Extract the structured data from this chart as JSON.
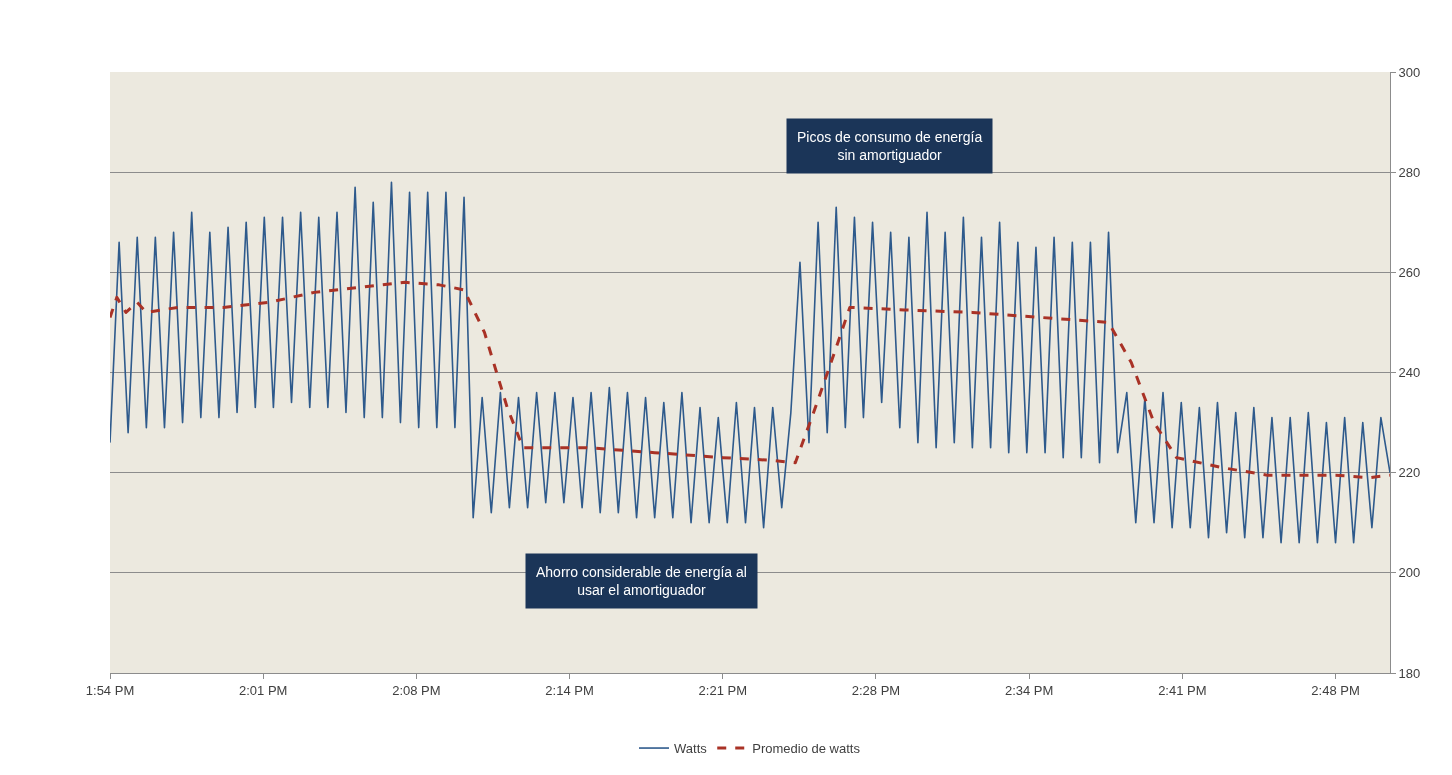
{
  "chart_data": {
    "type": "line",
    "xlim": [
      13.9,
      14.84
    ],
    "xticks": [
      {
        "value": 13.9,
        "label": "1:54 PM"
      },
      {
        "value": 14.0125,
        "label": "2:01 PM"
      },
      {
        "value": 14.125,
        "label": "2:08 PM"
      },
      {
        "value": 14.2375,
        "label": "2:14 PM"
      },
      {
        "value": 14.35,
        "label": "2:21 PM"
      },
      {
        "value": 14.4625,
        "label": "2:28 PM"
      },
      {
        "value": 14.575,
        "label": "2:34 PM"
      },
      {
        "value": 14.6875,
        "label": "2:41 PM"
      },
      {
        "value": 14.8,
        "label": "2:48 PM"
      }
    ],
    "ylim": [
      180,
      300
    ],
    "yticks": [
      180,
      200,
      220,
      240,
      260,
      280,
      300
    ],
    "grid": "y",
    "legend": "bottom",
    "annotations": [
      "Picos de consumo de energía\nsin amortiguador",
      "Ahorro considerable de energía al\nusar el amortiguador"
    ],
    "series": [
      {
        "name": "Watts",
        "color": "#2e5a8c",
        "line_style": "solid",
        "x": [
          13.9,
          13.9067,
          13.9133,
          13.92,
          13.9267,
          13.9333,
          13.94,
          13.9467,
          13.9533,
          13.96,
          13.9667,
          13.9733,
          13.98,
          13.9867,
          13.9933,
          14.0,
          14.0067,
          14.0133,
          14.02,
          14.0267,
          14.0333,
          14.04,
          14.0467,
          14.0533,
          14.06,
          14.0667,
          14.0733,
          14.08,
          14.0867,
          14.0933,
          14.1,
          14.1067,
          14.1133,
          14.12,
          14.1267,
          14.1333,
          14.14,
          14.1467,
          14.1533,
          14.16,
          14.1667,
          14.1733,
          14.18,
          14.1867,
          14.1933,
          14.2,
          14.2067,
          14.2133,
          14.22,
          14.2267,
          14.2333,
          14.24,
          14.2467,
          14.2533,
          14.26,
          14.2667,
          14.2733,
          14.28,
          14.2867,
          14.2933,
          14.3,
          14.3067,
          14.3133,
          14.32,
          14.3267,
          14.3333,
          14.34,
          14.3467,
          14.3533,
          14.36,
          14.3667,
          14.3733,
          14.38,
          14.3867,
          14.3933,
          14.4,
          14.4067,
          14.4133,
          14.42,
          14.4267,
          14.4333,
          14.44,
          14.4467,
          14.4533,
          14.46,
          14.4667,
          14.4733,
          14.48,
          14.4867,
          14.4933,
          14.5,
          14.5067,
          14.5133,
          14.52,
          14.5267,
          14.5333,
          14.54,
          14.5467,
          14.5533,
          14.56,
          14.5667,
          14.5733,
          14.58,
          14.5867,
          14.5933,
          14.6,
          14.6067,
          14.6133,
          14.62,
          14.6267,
          14.6333,
          14.64,
          14.6467,
          14.6533,
          14.66,
          14.6667,
          14.6733,
          14.68,
          14.6867,
          14.6933,
          14.7,
          14.7067,
          14.7133,
          14.72,
          14.7267,
          14.7333,
          14.74,
          14.7467,
          14.7533,
          14.76,
          14.7667,
          14.7733,
          14.78,
          14.7867,
          14.7933,
          14.8,
          14.8067,
          14.8133,
          14.82,
          14.8267,
          14.8333,
          14.84
        ],
        "values": [
          226,
          266,
          228,
          267,
          229,
          267,
          229,
          268,
          230,
          272,
          231,
          268,
          231,
          269,
          232,
          270,
          233,
          271,
          233,
          271,
          234,
          272,
          233,
          271,
          233,
          272,
          232,
          277,
          231,
          274,
          231,
          278,
          230,
          276,
          229,
          276,
          229,
          276,
          229,
          275,
          211,
          235,
          212,
          236,
          213,
          235,
          213,
          236,
          214,
          236,
          214,
          235,
          213,
          236,
          212,
          237,
          212,
          236,
          211,
          235,
          211,
          234,
          211,
          236,
          210,
          233,
          210,
          231,
          210,
          234,
          210,
          233,
          209,
          233,
          213,
          232,
          262,
          226,
          270,
          228,
          273,
          229,
          271,
          231,
          270,
          234,
          268,
          229,
          267,
          226,
          272,
          225,
          268,
          226,
          271,
          225,
          267,
          225,
          270,
          224,
          266,
          224,
          265,
          224,
          267,
          223,
          266,
          223,
          266,
          222,
          268,
          224,
          236,
          210,
          235,
          210,
          236,
          209,
          234,
          209,
          233,
          207,
          234,
          208,
          232,
          207,
          233,
          207,
          231,
          206,
          231,
          206,
          232,
          206,
          230,
          206,
          231,
          206,
          230,
          209,
          231,
          220
        ]
      },
      {
        "name": "Promedio de watts",
        "color": "#a93226",
        "line_style": "dashed",
        "x": [
          13.9,
          13.905,
          13.9117,
          13.92,
          13.9267,
          13.95,
          13.9833,
          14.0167,
          14.05,
          14.0833,
          14.1167,
          14.1417,
          14.16,
          14.175,
          14.1917,
          14.2033,
          14.25,
          14.3,
          14.35,
          14.3833,
          14.4033,
          14.4167,
          14.4333,
          14.4433,
          14.4833,
          14.5333,
          14.5833,
          14.6333,
          14.65,
          14.6667,
          14.6833,
          14.7167,
          14.75,
          14.8,
          14.825,
          14.84
        ],
        "values": [
          251,
          255,
          252,
          254,
          252,
          253,
          253,
          254,
          256,
          257,
          258,
          257.5,
          256.5,
          248,
          233,
          225,
          225,
          224,
          223,
          222.5,
          222,
          232,
          245,
          253,
          252.5,
          252,
          251,
          250,
          242,
          230,
          223,
          221,
          219.5,
          219.5,
          219,
          219.5
        ]
      }
    ]
  }
}
